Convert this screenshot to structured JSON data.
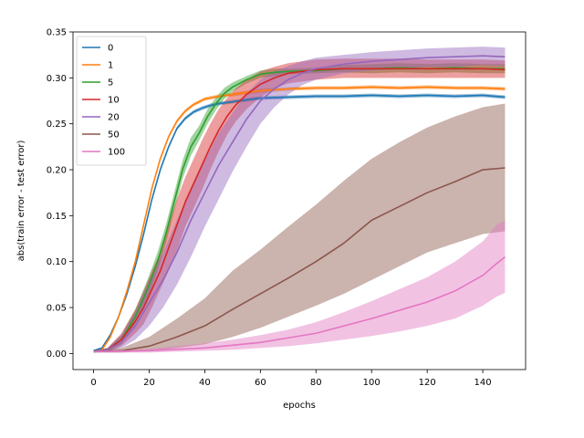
{
  "chart_data": {
    "type": "line",
    "title": "",
    "xlabel": "epochs",
    "ylabel": "abs(train error - test error)",
    "xlim": [
      -7.4,
      155.4
    ],
    "ylim": [
      -0.0175,
      0.35
    ],
    "xticks": [
      0,
      20,
      40,
      60,
      80,
      100,
      120,
      140
    ],
    "xtick_labels": [
      "0",
      "20",
      "40",
      "60",
      "80",
      "100",
      "120",
      "140"
    ],
    "yticks": [
      0.0,
      0.05,
      0.1,
      0.15,
      0.2,
      0.25,
      0.3,
      0.35
    ],
    "ytick_labels": [
      "0.00",
      "0.05",
      "0.10",
      "0.15",
      "0.20",
      "0.25",
      "0.30",
      "0.35"
    ],
    "grid": false,
    "legend_position": "upper-left",
    "series": [
      {
        "name": "0",
        "color": "#1f77b4",
        "x": [
          0,
          3,
          6,
          9,
          12,
          15,
          18,
          21,
          24,
          27,
          30,
          33,
          36,
          39,
          42,
          45,
          50,
          55,
          60,
          70,
          80,
          90,
          100,
          110,
          120,
          130,
          140,
          148
        ],
        "y": [
          0.003,
          0.006,
          0.02,
          0.04,
          0.065,
          0.095,
          0.13,
          0.168,
          0.2,
          0.225,
          0.245,
          0.256,
          0.263,
          0.267,
          0.27,
          0.272,
          0.274,
          0.276,
          0.278,
          0.279,
          0.28,
          0.28,
          0.281,
          0.28,
          0.281,
          0.28,
          0.281,
          0.279
        ],
        "lower": [
          0.002,
          0.005,
          0.018,
          0.038,
          0.063,
          0.093,
          0.128,
          0.166,
          0.198,
          0.223,
          0.243,
          0.254,
          0.261,
          0.265,
          0.268,
          0.27,
          0.272,
          0.274,
          0.276,
          0.277,
          0.278,
          0.278,
          0.279,
          0.278,
          0.279,
          0.278,
          0.279,
          0.277
        ],
        "upper": [
          0.004,
          0.007,
          0.022,
          0.042,
          0.067,
          0.097,
          0.132,
          0.17,
          0.202,
          0.227,
          0.247,
          0.258,
          0.265,
          0.269,
          0.272,
          0.274,
          0.276,
          0.278,
          0.28,
          0.281,
          0.282,
          0.282,
          0.283,
          0.282,
          0.283,
          0.282,
          0.283,
          0.281
        ]
      },
      {
        "name": "1",
        "color": "#ff7f0e",
        "x": [
          0,
          3,
          6,
          9,
          12,
          15,
          18,
          21,
          24,
          27,
          30,
          33,
          36,
          40,
          45,
          50,
          55,
          60,
          70,
          80,
          90,
          100,
          110,
          120,
          130,
          140,
          148
        ],
        "y": [
          0.002,
          0.004,
          0.018,
          0.04,
          0.068,
          0.1,
          0.14,
          0.18,
          0.212,
          0.236,
          0.253,
          0.264,
          0.271,
          0.277,
          0.28,
          0.282,
          0.284,
          0.286,
          0.288,
          0.289,
          0.289,
          0.29,
          0.289,
          0.29,
          0.289,
          0.289,
          0.288
        ],
        "lower": [
          0.001,
          0.003,
          0.016,
          0.038,
          0.066,
          0.098,
          0.138,
          0.178,
          0.21,
          0.234,
          0.251,
          0.262,
          0.269,
          0.275,
          0.278,
          0.28,
          0.282,
          0.284,
          0.286,
          0.287,
          0.287,
          0.288,
          0.287,
          0.288,
          0.287,
          0.287,
          0.286
        ],
        "upper": [
          0.003,
          0.005,
          0.02,
          0.042,
          0.07,
          0.102,
          0.142,
          0.182,
          0.214,
          0.238,
          0.255,
          0.266,
          0.273,
          0.279,
          0.282,
          0.284,
          0.286,
          0.288,
          0.29,
          0.291,
          0.291,
          0.292,
          0.291,
          0.292,
          0.291,
          0.291,
          0.29
        ]
      },
      {
        "name": "5",
        "color": "#2ca02c",
        "x": [
          0,
          5,
          10,
          15,
          18,
          20,
          23,
          26,
          29,
          32,
          35,
          38,
          41,
          44,
          47,
          50,
          55,
          60,
          65,
          70,
          80,
          90,
          100,
          110,
          120,
          130,
          140,
          148
        ],
        "y": [
          0.002,
          0.004,
          0.015,
          0.04,
          0.06,
          0.075,
          0.1,
          0.13,
          0.165,
          0.2,
          0.225,
          0.24,
          0.258,
          0.272,
          0.283,
          0.29,
          0.298,
          0.304,
          0.306,
          0.307,
          0.308,
          0.31,
          0.31,
          0.311,
          0.31,
          0.311,
          0.31,
          0.31
        ],
        "lower": [
          0.001,
          0.002,
          0.01,
          0.032,
          0.05,
          0.065,
          0.09,
          0.12,
          0.155,
          0.19,
          0.215,
          0.232,
          0.25,
          0.265,
          0.277,
          0.285,
          0.294,
          0.3,
          0.302,
          0.304,
          0.305,
          0.306,
          0.305,
          0.306,
          0.305,
          0.306,
          0.305,
          0.305
        ],
        "upper": [
          0.003,
          0.006,
          0.02,
          0.048,
          0.07,
          0.085,
          0.11,
          0.14,
          0.175,
          0.21,
          0.235,
          0.248,
          0.266,
          0.279,
          0.289,
          0.295,
          0.302,
          0.308,
          0.31,
          0.31,
          0.311,
          0.314,
          0.315,
          0.316,
          0.315,
          0.316,
          0.315,
          0.315
        ]
      },
      {
        "name": "10",
        "color": "#d62728",
        "x": [
          0,
          5,
          10,
          15,
          18,
          21,
          24,
          27,
          30,
          33,
          36,
          39,
          42,
          45,
          48,
          51,
          55,
          60,
          65,
          70,
          80,
          90,
          100,
          110,
          120,
          130,
          140,
          148
        ],
        "y": [
          0.002,
          0.004,
          0.015,
          0.035,
          0.05,
          0.07,
          0.09,
          0.115,
          0.14,
          0.165,
          0.185,
          0.205,
          0.225,
          0.243,
          0.258,
          0.27,
          0.282,
          0.293,
          0.3,
          0.305,
          0.309,
          0.31,
          0.31,
          0.31,
          0.31,
          0.31,
          0.31,
          0.309
        ],
        "lower": [
          0.001,
          0.002,
          0.008,
          0.022,
          0.032,
          0.05,
          0.07,
          0.09,
          0.112,
          0.138,
          0.158,
          0.178,
          0.2,
          0.22,
          0.238,
          0.252,
          0.266,
          0.279,
          0.288,
          0.294,
          0.298,
          0.3,
          0.3,
          0.3,
          0.3,
          0.3,
          0.3,
          0.3
        ],
        "upper": [
          0.003,
          0.006,
          0.022,
          0.048,
          0.068,
          0.09,
          0.11,
          0.14,
          0.168,
          0.192,
          0.212,
          0.232,
          0.25,
          0.266,
          0.278,
          0.288,
          0.298,
          0.307,
          0.312,
          0.316,
          0.32,
          0.321,
          0.321,
          0.321,
          0.32,
          0.32,
          0.32,
          0.319
        ]
      },
      {
        "name": "20",
        "color": "#9467bd",
        "x": [
          0,
          5,
          10,
          15,
          20,
          25,
          30,
          35,
          40,
          45,
          50,
          55,
          60,
          65,
          70,
          75,
          80,
          90,
          100,
          110,
          120,
          130,
          140,
          148
        ],
        "y": [
          0.002,
          0.004,
          0.012,
          0.03,
          0.055,
          0.08,
          0.11,
          0.145,
          0.175,
          0.205,
          0.23,
          0.255,
          0.275,
          0.288,
          0.298,
          0.305,
          0.31,
          0.315,
          0.318,
          0.32,
          0.322,
          0.323,
          0.324,
          0.323
        ],
        "lower": [
          0.001,
          0.002,
          0.006,
          0.015,
          0.03,
          0.05,
          0.075,
          0.105,
          0.138,
          0.168,
          0.198,
          0.225,
          0.25,
          0.268,
          0.282,
          0.292,
          0.298,
          0.305,
          0.308,
          0.31,
          0.312,
          0.312,
          0.314,
          0.313
        ],
        "upper": [
          0.003,
          0.006,
          0.02,
          0.045,
          0.08,
          0.11,
          0.145,
          0.18,
          0.21,
          0.24,
          0.262,
          0.283,
          0.298,
          0.307,
          0.313,
          0.318,
          0.322,
          0.325,
          0.328,
          0.33,
          0.332,
          0.333,
          0.334,
          0.333
        ]
      },
      {
        "name": "50",
        "color": "#8c564b",
        "x": [
          0,
          10,
          20,
          30,
          40,
          50,
          60,
          70,
          80,
          90,
          100,
          110,
          120,
          130,
          140,
          148
        ],
        "y": [
          0.002,
          0.003,
          0.008,
          0.018,
          0.03,
          0.048,
          0.065,
          0.082,
          0.1,
          0.12,
          0.145,
          0.16,
          0.175,
          0.187,
          0.2,
          0.202
        ],
        "lower": [
          0.001,
          0.001,
          0.003,
          0.006,
          0.01,
          0.018,
          0.028,
          0.04,
          0.052,
          0.065,
          0.08,
          0.095,
          0.11,
          0.12,
          0.13,
          0.133
        ],
        "upper": [
          0.003,
          0.006,
          0.018,
          0.038,
          0.06,
          0.09,
          0.113,
          0.138,
          0.162,
          0.188,
          0.212,
          0.23,
          0.246,
          0.258,
          0.268,
          0.272
        ]
      },
      {
        "name": "100",
        "color": "#e377c2",
        "x": [
          0,
          20,
          40,
          50,
          60,
          70,
          80,
          90,
          100,
          110,
          120,
          130,
          140,
          145,
          148
        ],
        "y": [
          0.002,
          0.003,
          0.006,
          0.009,
          0.012,
          0.017,
          0.022,
          0.03,
          0.038,
          0.047,
          0.056,
          0.068,
          0.085,
          0.098,
          0.105
        ],
        "lower": [
          0.001,
          0.001,
          0.003,
          0.004,
          0.006,
          0.008,
          0.011,
          0.015,
          0.019,
          0.024,
          0.03,
          0.038,
          0.052,
          0.062,
          0.066
        ],
        "upper": [
          0.003,
          0.005,
          0.011,
          0.015,
          0.02,
          0.026,
          0.034,
          0.045,
          0.057,
          0.07,
          0.083,
          0.1,
          0.122,
          0.14,
          0.145
        ]
      }
    ]
  }
}
